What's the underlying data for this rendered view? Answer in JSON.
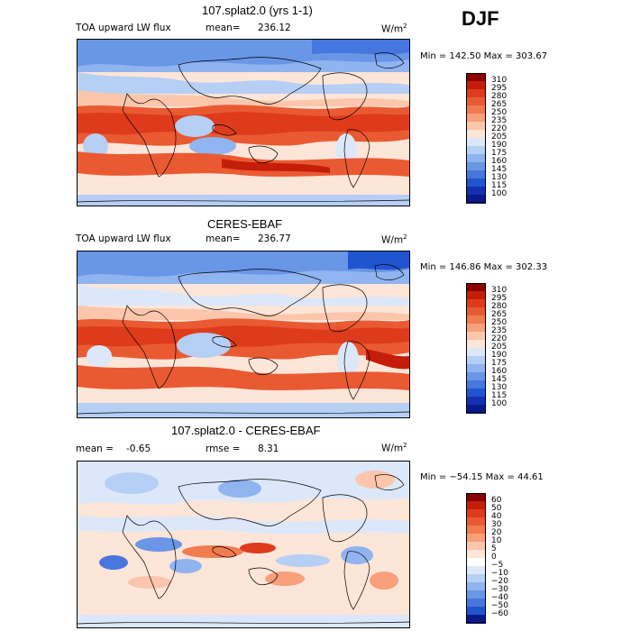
{
  "season": "DJF",
  "panels": [
    {
      "title": "107.splat2.0 (yrs 1-1)",
      "variable": "TOA upward LW flux",
      "stat_label": "mean=",
      "stat_value": "236.12",
      "units": "W/m",
      "units_sup": "2",
      "minmax": "Min = 142.50 Max = 303.67",
      "levels": [
        "310",
        "295",
        "280",
        "265",
        "250",
        "235",
        "220",
        "205",
        "190",
        "175",
        "160",
        "145",
        "130",
        "115",
        "100"
      ]
    },
    {
      "title": "CERES-EBAF",
      "variable": "TOA upward LW flux",
      "stat_label": "mean=",
      "stat_value": "236.77",
      "units": "W/m",
      "units_sup": "2",
      "minmax": "Min = 146.86 Max = 302.33",
      "levels": [
        "310",
        "295",
        "280",
        "265",
        "250",
        "235",
        "220",
        "205",
        "190",
        "175",
        "160",
        "145",
        "130",
        "115",
        "100"
      ]
    },
    {
      "title": "107.splat2.0 - CERES-EBAF",
      "stat_label": "mean =",
      "stat_value": "-0.65",
      "rmse_label": "rmse =",
      "rmse_value": "8.31",
      "units": "W/m",
      "units_sup": "2",
      "minmax": "Min = −54.15 Max =  44.61",
      "levels": [
        "60",
        "50",
        "40",
        "30",
        "20",
        "10",
        "5",
        "0",
        "−5",
        "−10",
        "−20",
        "−30",
        "−40",
        "−50",
        "−60"
      ]
    }
  ],
  "colors": {
    "abs_scale": [
      "#8b0000",
      "#c41e0a",
      "#dd3b1c",
      "#ea5a32",
      "#f07c4f",
      "#f7a07b",
      "#fbc6ab",
      "#fde5d8",
      "#dce8fa",
      "#b6cff5",
      "#8fb4f0",
      "#6a96e6",
      "#4676de",
      "#2155d0",
      "#1430b0",
      "#0a1a8c"
    ],
    "diff_scale": [
      "#8b0000",
      "#c41e0a",
      "#dd3b1c",
      "#ea5a32",
      "#f07c4f",
      "#f7a07b",
      "#fbc6ab",
      "#fde5d8",
      "#ffffff",
      "#dce8fa",
      "#b6cff5",
      "#8fb4f0",
      "#6a96e6",
      "#4676de",
      "#2155d0",
      "#0a1a8c"
    ]
  }
}
